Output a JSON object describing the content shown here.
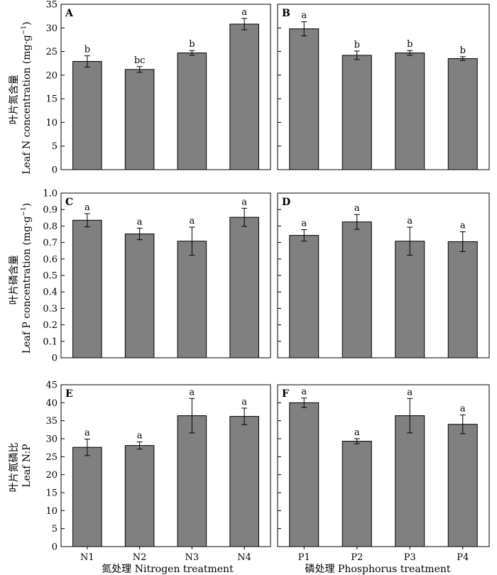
{
  "figure": {
    "y_labels": [
      {
        "cn": "叶片氮含量",
        "en": "Leaf N concentration (mg·g",
        "sup": "−1",
        "close": ")"
      },
      {
        "cn": "叶片磷含量",
        "en": "Leaf P concentration (mg·g",
        "sup": "−1",
        "close": ")"
      },
      {
        "cn": "叶片氮磷比",
        "en": "Leaf N:P",
        "sup": "",
        "close": ""
      }
    ],
    "x_labels": [
      "氮处理 Nitrogen treatment",
      "磷处理 Phosphorus treatment"
    ]
  },
  "chart_data": [
    {
      "type": "bar",
      "panel": "A",
      "categories": [
        "N1",
        "N2",
        "N3",
        "N4"
      ],
      "values": [
        22.9,
        21.2,
        24.7,
        30.8
      ],
      "errors": [
        1.2,
        0.6,
        0.5,
        1.2
      ],
      "letters": [
        "b",
        "bc",
        "b",
        "a"
      ],
      "ylim": [
        0,
        35
      ],
      "yticks": [
        "0",
        "5",
        "10",
        "15",
        "20",
        "25",
        "30",
        "35"
      ]
    },
    {
      "type": "bar",
      "panel": "B",
      "categories": [
        "P1",
        "P2",
        "P3",
        "P4"
      ],
      "values": [
        29.8,
        24.2,
        24.7,
        23.5
      ],
      "errors": [
        1.5,
        0.9,
        0.5,
        0.4
      ],
      "letters": [
        "a",
        "b",
        "b",
        "b"
      ],
      "ylim": [
        0,
        35
      ],
      "yticks": []
    },
    {
      "type": "bar",
      "panel": "C",
      "categories": [
        "N1",
        "N2",
        "N3",
        "N4"
      ],
      "values": [
        0.835,
        0.752,
        0.708,
        0.853
      ],
      "errors": [
        0.04,
        0.035,
        0.085,
        0.055
      ],
      "letters": [
        "a",
        "a",
        "a",
        "a"
      ],
      "ylim": [
        0,
        1.0
      ],
      "yticks": [
        "0",
        "0.1",
        "0.2",
        "0.3",
        "0.4",
        "0.5",
        "0.6",
        "0.7",
        "0.8",
        "0.9",
        "1.0"
      ]
    },
    {
      "type": "bar",
      "panel": "D",
      "categories": [
        "P1",
        "P2",
        "P3",
        "P4"
      ],
      "values": [
        0.743,
        0.825,
        0.708,
        0.705
      ],
      "errors": [
        0.035,
        0.045,
        0.085,
        0.06
      ],
      "letters": [
        "a",
        "a",
        "a",
        "a"
      ],
      "ylim": [
        0,
        1.0
      ],
      "yticks": []
    },
    {
      "type": "bar",
      "panel": "E",
      "categories": [
        "N1",
        "N2",
        "N3",
        "N4"
      ],
      "values": [
        27.6,
        28.1,
        36.4,
        36.2
      ],
      "errors": [
        2.3,
        1.0,
        4.8,
        2.3
      ],
      "letters": [
        "a",
        "a",
        "a",
        "a"
      ],
      "ylim": [
        0,
        45
      ],
      "yticks": [
        "0",
        "5",
        "10",
        "15",
        "20",
        "25",
        "30",
        "35",
        "40",
        "45"
      ]
    },
    {
      "type": "bar",
      "panel": "F",
      "categories": [
        "P1",
        "P2",
        "P3",
        "P4"
      ],
      "values": [
        40.0,
        29.3,
        36.4,
        34.0
      ],
      "errors": [
        1.3,
        0.7,
        4.8,
        2.6
      ],
      "letters": [
        "a",
        "a",
        "a",
        "a"
      ],
      "ylim": [
        0,
        45
      ],
      "yticks": []
    }
  ]
}
